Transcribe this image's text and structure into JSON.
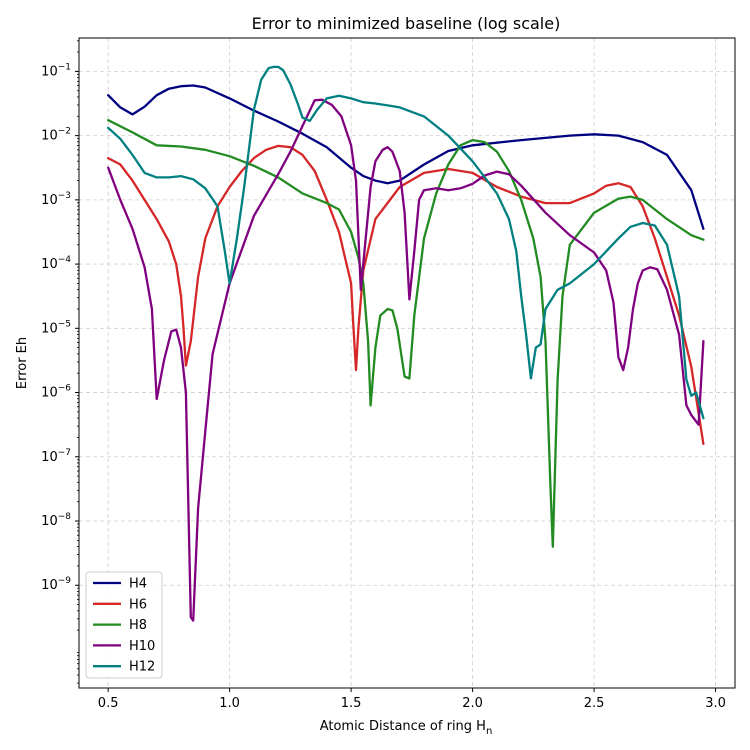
{
  "chart_data": {
    "type": "line",
    "title": "Error to minimized baseline (log scale)",
    "xlabel": "Atomic Distance of ring H",
    "xlabel_subscript": "n",
    "ylabel": "Error Eh",
    "xlim": [
      0.38,
      3.08
    ],
    "ylim_log10": [
      -10.6,
      -0.48
    ],
    "y_scale": "log",
    "grid": true,
    "legend_position": "lower-left",
    "x_ticks": [
      0.5,
      1.0,
      1.5,
      2.0,
      2.5,
      3.0
    ],
    "x_tick_labels": [
      "0.5",
      "1.0",
      "1.5",
      "2.0",
      "2.5",
      "3.0"
    ],
    "y_tick_exponents": [
      -9,
      -8,
      -7,
      -6,
      -5,
      -4,
      -3,
      -2,
      -1
    ],
    "series": [
      {
        "name": "H4",
        "color": "#000080",
        "x": [
          0.5,
          0.55,
          0.6,
          0.65,
          0.7,
          0.75,
          0.8,
          0.85,
          0.9,
          1.0,
          1.1,
          1.2,
          1.3,
          1.4,
          1.5,
          1.55,
          1.6,
          1.65,
          1.7,
          1.8,
          1.9,
          2.0,
          2.2,
          2.4,
          2.5,
          2.6,
          2.7,
          2.8,
          2.9,
          2.95
        ],
        "log10_y": [
          -1.37,
          -1.56,
          -1.67,
          -1.55,
          -1.37,
          -1.27,
          -1.23,
          -1.22,
          -1.25,
          -1.42,
          -1.61,
          -1.78,
          -1.97,
          -2.18,
          -2.5,
          -2.63,
          -2.7,
          -2.74,
          -2.7,
          -2.45,
          -2.24,
          -2.15,
          -2.07,
          -2.0,
          -1.98,
          -2.0,
          -2.1,
          -2.3,
          -2.85,
          -3.45
        ]
      },
      {
        "name": "H6",
        "color": "#d62728",
        "x": [
          0.5,
          0.55,
          0.6,
          0.65,
          0.7,
          0.75,
          0.78,
          0.8,
          0.81,
          0.82,
          0.84,
          0.87,
          0.9,
          0.95,
          1.0,
          1.05,
          1.1,
          1.15,
          1.2,
          1.25,
          1.3,
          1.35,
          1.4,
          1.45,
          1.5,
          1.51,
          1.52,
          1.53,
          1.55,
          1.6,
          1.7,
          1.8,
          1.9,
          2.0,
          2.1,
          2.2,
          2.3,
          2.4,
          2.5,
          2.55,
          2.6,
          2.65,
          2.7,
          2.75,
          2.8,
          2.85,
          2.9,
          2.95
        ],
        "log10_y": [
          -2.35,
          -2.45,
          -2.7,
          -3.0,
          -3.3,
          -3.65,
          -4.0,
          -4.5,
          -5.0,
          -5.58,
          -5.2,
          -4.2,
          -3.6,
          -3.1,
          -2.8,
          -2.55,
          -2.35,
          -2.22,
          -2.16,
          -2.18,
          -2.3,
          -2.55,
          -3.0,
          -3.5,
          -4.3,
          -5.0,
          -5.65,
          -5.0,
          -4.1,
          -3.3,
          -2.8,
          -2.58,
          -2.52,
          -2.58,
          -2.8,
          -2.95,
          -3.05,
          -3.05,
          -2.9,
          -2.78,
          -2.74,
          -2.8,
          -3.1,
          -3.6,
          -4.2,
          -4.8,
          -5.6,
          -6.8
        ]
      },
      {
        "name": "H8",
        "color": "#228b22",
        "x": [
          0.5,
          0.6,
          0.7,
          0.8,
          0.9,
          1.0,
          1.1,
          1.2,
          1.3,
          1.4,
          1.45,
          1.5,
          1.53,
          1.55,
          1.57,
          1.58,
          1.6,
          1.62,
          1.65,
          1.67,
          1.69,
          1.72,
          1.74,
          1.76,
          1.8,
          1.85,
          1.9,
          1.95,
          2.0,
          2.05,
          2.1,
          2.15,
          2.2,
          2.25,
          2.28,
          2.3,
          2.32,
          2.33,
          2.35,
          2.37,
          2.4,
          2.5,
          2.6,
          2.65,
          2.7,
          2.8,
          2.9,
          2.95
        ],
        "log10_y": [
          -1.76,
          -1.95,
          -2.15,
          -2.17,
          -2.22,
          -2.32,
          -2.47,
          -2.65,
          -2.9,
          -3.05,
          -3.15,
          -3.5,
          -3.9,
          -4.3,
          -5.2,
          -6.2,
          -5.3,
          -4.8,
          -4.7,
          -4.72,
          -5.0,
          -5.75,
          -5.78,
          -4.8,
          -3.6,
          -2.9,
          -2.45,
          -2.15,
          -2.07,
          -2.1,
          -2.25,
          -2.55,
          -3.0,
          -3.6,
          -4.2,
          -5.2,
          -7.4,
          -8.4,
          -5.8,
          -4.5,
          -3.7,
          -3.2,
          -2.98,
          -2.95,
          -3.0,
          -3.3,
          -3.55,
          -3.62
        ]
      },
      {
        "name": "H10",
        "color": "#800080",
        "x": [
          0.5,
          0.55,
          0.6,
          0.65,
          0.68,
          0.7,
          0.73,
          0.76,
          0.78,
          0.8,
          0.82,
          0.84,
          0.85,
          0.87,
          0.9,
          0.93,
          1.0,
          1.1,
          1.2,
          1.25,
          1.3,
          1.35,
          1.38,
          1.42,
          1.46,
          1.5,
          1.52,
          1.54,
          1.56,
          1.58,
          1.6,
          1.63,
          1.65,
          1.67,
          1.7,
          1.72,
          1.74,
          1.76,
          1.78,
          1.8,
          1.85,
          1.9,
          1.95,
          2.0,
          2.05,
          2.1,
          2.15,
          2.2,
          2.3,
          2.4,
          2.5,
          2.55,
          2.58,
          2.6,
          2.62,
          2.64,
          2.66,
          2.68,
          2.7,
          2.73,
          2.76,
          2.8,
          2.85,
          2.88,
          2.9,
          2.93,
          2.95
        ],
        "log10_y": [
          -2.5,
          -3.0,
          -3.45,
          -4.05,
          -4.7,
          -6.1,
          -5.5,
          -5.05,
          -5.02,
          -5.3,
          -6.0,
          -9.5,
          -9.55,
          -7.8,
          -6.6,
          -5.4,
          -4.3,
          -3.25,
          -2.6,
          -2.25,
          -1.85,
          -1.45,
          -1.44,
          -1.52,
          -1.7,
          -2.15,
          -2.7,
          -4.4,
          -3.6,
          -2.8,
          -2.4,
          -2.22,
          -2.18,
          -2.25,
          -2.55,
          -3.2,
          -4.55,
          -3.8,
          -3.0,
          -2.85,
          -2.82,
          -2.85,
          -2.82,
          -2.75,
          -2.62,
          -2.56,
          -2.6,
          -2.78,
          -3.2,
          -3.55,
          -3.82,
          -4.1,
          -4.6,
          -5.45,
          -5.65,
          -5.3,
          -4.7,
          -4.3,
          -4.1,
          -4.05,
          -4.08,
          -4.4,
          -5.1,
          -6.2,
          -6.35,
          -6.5,
          -5.2
        ]
      },
      {
        "name": "H12",
        "color": "#008080",
        "x": [
          0.5,
          0.55,
          0.6,
          0.65,
          0.7,
          0.75,
          0.8,
          0.85,
          0.9,
          0.95,
          0.98,
          1.0,
          1.03,
          1.06,
          1.1,
          1.13,
          1.16,
          1.18,
          1.2,
          1.22,
          1.25,
          1.28,
          1.3,
          1.33,
          1.36,
          1.4,
          1.45,
          1.5,
          1.55,
          1.6,
          1.65,
          1.7,
          1.8,
          1.9,
          2.0,
          2.1,
          2.15,
          2.18,
          2.2,
          2.22,
          2.24,
          2.26,
          2.28,
          2.3,
          2.35,
          2.4,
          2.5,
          2.6,
          2.65,
          2.7,
          2.75,
          2.8,
          2.85,
          2.88,
          2.9,
          2.92,
          2.95
        ],
        "log10_y": [
          -1.88,
          -2.05,
          -2.3,
          -2.58,
          -2.65,
          -2.65,
          -2.63,
          -2.68,
          -2.82,
          -3.1,
          -3.8,
          -4.3,
          -3.6,
          -2.8,
          -1.6,
          -1.13,
          -0.95,
          -0.93,
          -0.93,
          -0.98,
          -1.2,
          -1.5,
          -1.72,
          -1.77,
          -1.6,
          -1.42,
          -1.38,
          -1.42,
          -1.48,
          -1.5,
          -1.53,
          -1.56,
          -1.7,
          -2.0,
          -2.4,
          -2.9,
          -3.3,
          -3.8,
          -4.5,
          -5.1,
          -5.78,
          -5.3,
          -5.25,
          -4.7,
          -4.4,
          -4.3,
          -4.0,
          -3.6,
          -3.42,
          -3.36,
          -3.4,
          -3.7,
          -4.5,
          -5.8,
          -6.05,
          -6.0,
          -6.4
        ]
      }
    ]
  }
}
